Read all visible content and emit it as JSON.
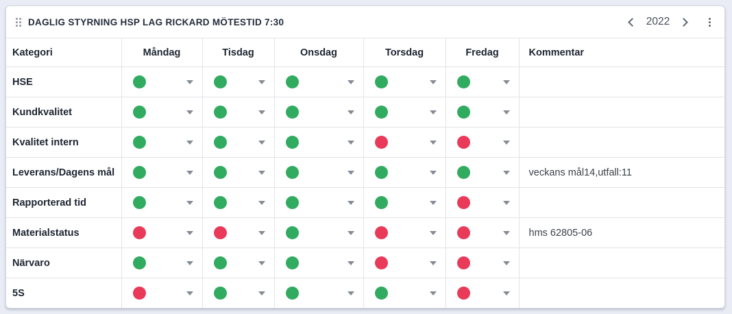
{
  "header": {
    "title": "DAGLIG STYRNING HSP LAG RICKARD MÖTESTID 7:30",
    "year": "2022"
  },
  "colors": {
    "green": "#31ab5f",
    "red": "#e93a5a"
  },
  "table": {
    "columns": [
      "Kategori",
      "Måndag",
      "Tisdag",
      "Onsdag",
      "Torsdag",
      "Fredag",
      "Kommentar"
    ],
    "rows": [
      {
        "category": "HSE",
        "statuses": [
          "green",
          "green",
          "green",
          "green",
          "green"
        ],
        "comment": ""
      },
      {
        "category": "Kundkvalitet",
        "statuses": [
          "green",
          "green",
          "green",
          "green",
          "green"
        ],
        "comment": ""
      },
      {
        "category": "Kvalitet intern",
        "statuses": [
          "green",
          "green",
          "green",
          "red",
          "red"
        ],
        "comment": ""
      },
      {
        "category": "Leverans/Dagens mål",
        "statuses": [
          "green",
          "green",
          "green",
          "green",
          "green"
        ],
        "comment": "veckans mål14,utfall:11"
      },
      {
        "category": "Rapporterad tid",
        "statuses": [
          "green",
          "green",
          "green",
          "green",
          "red"
        ],
        "comment": ""
      },
      {
        "category": "Materialstatus",
        "statuses": [
          "red",
          "red",
          "green",
          "red",
          "red"
        ],
        "comment": "hms 62805-06"
      },
      {
        "category": "Närvaro",
        "statuses": [
          "green",
          "green",
          "green",
          "red",
          "red"
        ],
        "comment": ""
      },
      {
        "category": "5S",
        "statuses": [
          "red",
          "green",
          "green",
          "green",
          "red"
        ],
        "comment": ""
      }
    ]
  }
}
